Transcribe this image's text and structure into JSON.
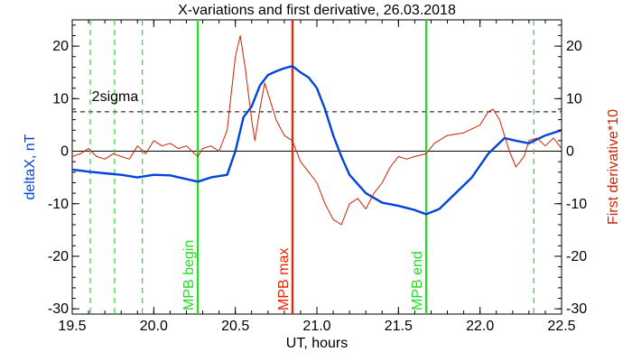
{
  "chart_data": {
    "type": "line",
    "title": "X-variations and first derivative, 26.03.2018",
    "xlabel": "UT, hours",
    "ylabel_left": "deltaX, nT",
    "ylabel_right": "First derivative*10",
    "xlim": [
      19.5,
      22.5
    ],
    "ylim_left": [
      -31,
      25
    ],
    "ylim_right": [
      -31,
      25
    ],
    "x_ticks": [
      "19.5",
      "20.0",
      "20.5",
      "21.0",
      "21.5",
      "22.0",
      "22.5"
    ],
    "y_ticks_left": [
      "20",
      "10",
      "0",
      "-10",
      "-20",
      "-30"
    ],
    "y_ticks_right": [
      "20",
      "10",
      "0",
      "-10",
      "-20",
      "-30"
    ],
    "zero_line": 0,
    "sigma_line": {
      "label": "2sigma",
      "value": 7.5
    },
    "colors": {
      "deltaX": "#0044dd",
      "derivative": "#cc2200",
      "mpb_green": "#22dd22",
      "mpb_red": "#ee2200"
    },
    "vertical_markers": [
      {
        "x": 20.27,
        "label": "MPB begin",
        "color": "#22dd22",
        "style": "solid"
      },
      {
        "x": 20.85,
        "label": "MPB max",
        "color": "#ee2200",
        "style": "solid"
      },
      {
        "x": 21.67,
        "label": "MPB end",
        "color": "#22dd22",
        "style": "solid"
      }
    ],
    "dashed_markers": [
      {
        "x": 19.61,
        "color": "#22dd22"
      },
      {
        "x": 19.76,
        "color": "#22dd22"
      },
      {
        "x": 19.93,
        "color": "#22dd22"
      },
      {
        "x": 22.33,
        "color": "#22dd22"
      }
    ],
    "series": [
      {
        "name": "deltaX, nT",
        "axis": "left",
        "x": [
          19.5,
          19.6,
          19.7,
          19.8,
          19.9,
          20.0,
          20.1,
          20.2,
          20.27,
          20.35,
          20.45,
          20.5,
          20.55,
          20.6,
          20.65,
          20.7,
          20.75,
          20.8,
          20.85,
          20.9,
          20.95,
          21.0,
          21.05,
          21.1,
          21.15,
          21.2,
          21.3,
          21.4,
          21.5,
          21.6,
          21.67,
          21.75,
          21.85,
          21.95,
          22.05,
          22.15,
          22.22,
          22.3,
          22.4,
          22.5
        ],
        "y": [
          -3.5,
          -3.9,
          -4.2,
          -4.5,
          -5.0,
          -4.5,
          -4.6,
          -5.3,
          -5.8,
          -5.0,
          -4.5,
          0.0,
          6.5,
          8.5,
          12.5,
          14.5,
          15.2,
          15.8,
          16.2,
          15.0,
          14.0,
          12.0,
          8.0,
          3.0,
          -1.0,
          -4.5,
          -8.0,
          -9.8,
          -10.4,
          -11.2,
          -12.0,
          -11.0,
          -8.0,
          -5.0,
          -0.5,
          2.5,
          2.0,
          1.5,
          3.0,
          4.0
        ]
      },
      {
        "name": "First derivative*10",
        "axis": "right",
        "x": [
          19.5,
          19.55,
          19.6,
          19.65,
          19.7,
          19.75,
          19.8,
          19.85,
          19.9,
          19.95,
          20.0,
          20.05,
          20.1,
          20.15,
          20.2,
          20.25,
          20.27,
          20.3,
          20.35,
          20.4,
          20.45,
          20.5,
          20.53,
          20.56,
          20.6,
          20.62,
          20.65,
          20.68,
          20.71,
          20.75,
          20.8,
          20.85,
          20.9,
          20.95,
          21.0,
          21.05,
          21.1,
          21.15,
          21.2,
          21.25,
          21.3,
          21.35,
          21.4,
          21.45,
          21.5,
          21.55,
          21.6,
          21.67,
          21.72,
          21.8,
          21.9,
          22.0,
          22.05,
          22.08,
          22.12,
          22.18,
          22.22,
          22.27,
          22.3,
          22.35,
          22.4,
          22.45,
          22.5
        ],
        "y": [
          -1.0,
          -0.5,
          0.5,
          -1.0,
          -1.5,
          -0.5,
          -1.0,
          -1.5,
          1.0,
          -0.5,
          2.0,
          1.0,
          1.5,
          0.5,
          1.0,
          -0.5,
          -1.0,
          0.5,
          1.0,
          0.0,
          4.0,
          18.0,
          22.0,
          16.0,
          6.0,
          2.0,
          8.0,
          13.0,
          10.0,
          6.0,
          3.0,
          2.0,
          -2.0,
          -4.0,
          -6.0,
          -10.0,
          -13.0,
          -14.0,
          -10.0,
          -9.0,
          -11.0,
          -8.0,
          -6.0,
          -3.0,
          -1.0,
          -1.5,
          -1.0,
          -0.5,
          1.5,
          3.0,
          3.5,
          5.0,
          7.5,
          8.0,
          6.0,
          0.0,
          -3.0,
          -1.0,
          2.0,
          2.5,
          1.0,
          2.5,
          0.5
        ]
      }
    ]
  }
}
